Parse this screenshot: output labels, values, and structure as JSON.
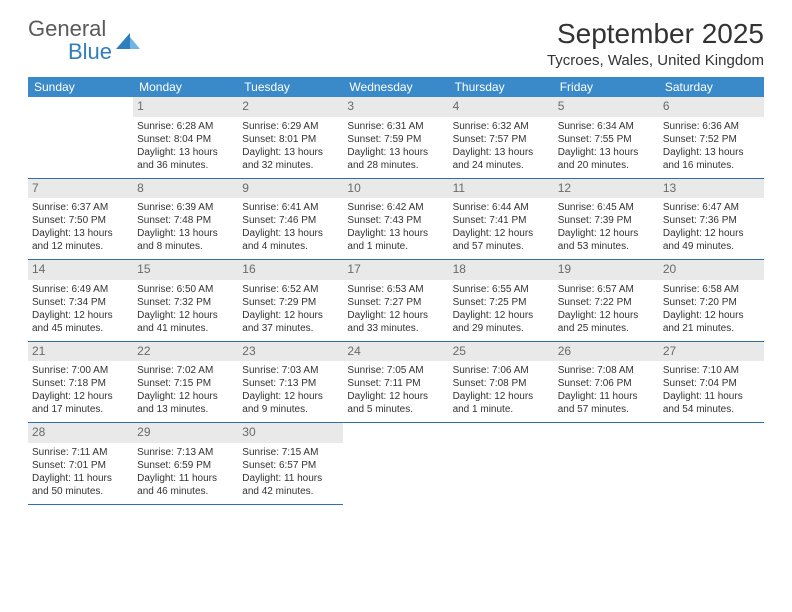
{
  "brand": {
    "line1": "General",
    "line2": "Blue"
  },
  "title": "September 2025",
  "location": "Tycroes, Wales, United Kingdom",
  "colors": {
    "header_bg": "#3a8ac9",
    "header_text": "#ffffff",
    "daynum_bg": "#e9e9e9",
    "daynum_text": "#6a6a6a",
    "row_border": "#2f6ea8",
    "brand_gray": "#5a5a5a",
    "brand_blue": "#2f7fbf"
  },
  "daysOfWeek": [
    "Sunday",
    "Monday",
    "Tuesday",
    "Wednesday",
    "Thursday",
    "Friday",
    "Saturday"
  ],
  "weeks": [
    [
      {
        "empty": true
      },
      {
        "n": "1",
        "sr": "6:28 AM",
        "ss": "8:04 PM",
        "dl": "13 hours and 36 minutes."
      },
      {
        "n": "2",
        "sr": "6:29 AM",
        "ss": "8:01 PM",
        "dl": "13 hours and 32 minutes."
      },
      {
        "n": "3",
        "sr": "6:31 AM",
        "ss": "7:59 PM",
        "dl": "13 hours and 28 minutes."
      },
      {
        "n": "4",
        "sr": "6:32 AM",
        "ss": "7:57 PM",
        "dl": "13 hours and 24 minutes."
      },
      {
        "n": "5",
        "sr": "6:34 AM",
        "ss": "7:55 PM",
        "dl": "13 hours and 20 minutes."
      },
      {
        "n": "6",
        "sr": "6:36 AM",
        "ss": "7:52 PM",
        "dl": "13 hours and 16 minutes."
      }
    ],
    [
      {
        "n": "7",
        "sr": "6:37 AM",
        "ss": "7:50 PM",
        "dl": "13 hours and 12 minutes."
      },
      {
        "n": "8",
        "sr": "6:39 AM",
        "ss": "7:48 PM",
        "dl": "13 hours and 8 minutes."
      },
      {
        "n": "9",
        "sr": "6:41 AM",
        "ss": "7:46 PM",
        "dl": "13 hours and 4 minutes."
      },
      {
        "n": "10",
        "sr": "6:42 AM",
        "ss": "7:43 PM",
        "dl": "13 hours and 1 minute."
      },
      {
        "n": "11",
        "sr": "6:44 AM",
        "ss": "7:41 PM",
        "dl": "12 hours and 57 minutes."
      },
      {
        "n": "12",
        "sr": "6:45 AM",
        "ss": "7:39 PM",
        "dl": "12 hours and 53 minutes."
      },
      {
        "n": "13",
        "sr": "6:47 AM",
        "ss": "7:36 PM",
        "dl": "12 hours and 49 minutes."
      }
    ],
    [
      {
        "n": "14",
        "sr": "6:49 AM",
        "ss": "7:34 PM",
        "dl": "12 hours and 45 minutes."
      },
      {
        "n": "15",
        "sr": "6:50 AM",
        "ss": "7:32 PM",
        "dl": "12 hours and 41 minutes."
      },
      {
        "n": "16",
        "sr": "6:52 AM",
        "ss": "7:29 PM",
        "dl": "12 hours and 37 minutes."
      },
      {
        "n": "17",
        "sr": "6:53 AM",
        "ss": "7:27 PM",
        "dl": "12 hours and 33 minutes."
      },
      {
        "n": "18",
        "sr": "6:55 AM",
        "ss": "7:25 PM",
        "dl": "12 hours and 29 minutes."
      },
      {
        "n": "19",
        "sr": "6:57 AM",
        "ss": "7:22 PM",
        "dl": "12 hours and 25 minutes."
      },
      {
        "n": "20",
        "sr": "6:58 AM",
        "ss": "7:20 PM",
        "dl": "12 hours and 21 minutes."
      }
    ],
    [
      {
        "n": "21",
        "sr": "7:00 AM",
        "ss": "7:18 PM",
        "dl": "12 hours and 17 minutes."
      },
      {
        "n": "22",
        "sr": "7:02 AM",
        "ss": "7:15 PM",
        "dl": "12 hours and 13 minutes."
      },
      {
        "n": "23",
        "sr": "7:03 AM",
        "ss": "7:13 PM",
        "dl": "12 hours and 9 minutes."
      },
      {
        "n": "24",
        "sr": "7:05 AM",
        "ss": "7:11 PM",
        "dl": "12 hours and 5 minutes."
      },
      {
        "n": "25",
        "sr": "7:06 AM",
        "ss": "7:08 PM",
        "dl": "12 hours and 1 minute."
      },
      {
        "n": "26",
        "sr": "7:08 AM",
        "ss": "7:06 PM",
        "dl": "11 hours and 57 minutes."
      },
      {
        "n": "27",
        "sr": "7:10 AM",
        "ss": "7:04 PM",
        "dl": "11 hours and 54 minutes."
      }
    ],
    [
      {
        "n": "28",
        "sr": "7:11 AM",
        "ss": "7:01 PM",
        "dl": "11 hours and 50 minutes."
      },
      {
        "n": "29",
        "sr": "7:13 AM",
        "ss": "6:59 PM",
        "dl": "11 hours and 46 minutes."
      },
      {
        "n": "30",
        "sr": "7:15 AM",
        "ss": "6:57 PM",
        "dl": "11 hours and 42 minutes."
      },
      {
        "empty": true
      },
      {
        "empty": true
      },
      {
        "empty": true
      },
      {
        "empty": true
      }
    ]
  ],
  "labels": {
    "sunrise": "Sunrise: ",
    "sunset": "Sunset: ",
    "daylight": "Daylight: "
  }
}
